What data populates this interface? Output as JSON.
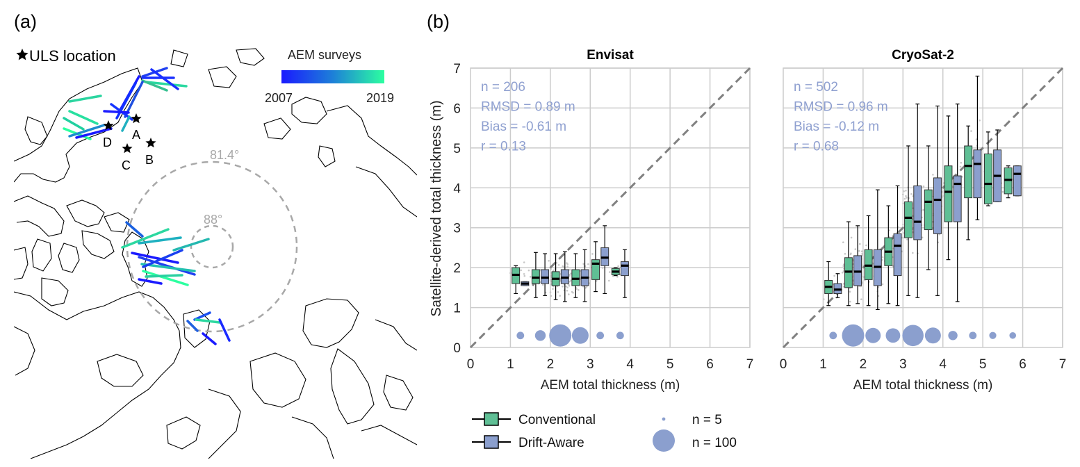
{
  "panel_a": {
    "label": "(a)",
    "uls_legend": "ULS location",
    "colorbar": {
      "title": "AEM surveys",
      "min_label": "2007",
      "max_label": "2019",
      "color_start": "#1a1aff",
      "color_end": "#2cffa0"
    },
    "latitude_labels": [
      "81.4°",
      "88°"
    ],
    "station_labels": [
      "A",
      "B",
      "C",
      "D"
    ]
  },
  "panel_b": {
    "label": "(b)",
    "legend": {
      "conventional": "Conventional",
      "drift_aware": "Drift-Aware",
      "n_small": "n = 5",
      "n_large": "n = 100"
    }
  },
  "colors": {
    "conventional": "#5fbf95",
    "drift_aware": "#8b9fce",
    "stats_text": "#8fa0d0",
    "scatter": "#c8c8c8",
    "grid": "#cccccc",
    "one_to_one": "#808080"
  },
  "chart_data": [
    {
      "type": "box",
      "title": "Envisat",
      "xlabel": "AEM total thickness (m)",
      "ylabel": "Satellite-derived total thickness (m)",
      "xlim": [
        0,
        7
      ],
      "ylim": [
        0,
        7
      ],
      "ticks": [
        0,
        1,
        2,
        3,
        4,
        5,
        6,
        7
      ],
      "stats": [
        "n = 206",
        "RMSD = 0.89 m",
        "Bias = -0.61 m",
        "r = 0.13"
      ],
      "bins": [
        1.25,
        1.75,
        2.25,
        2.75,
        3.25,
        3.75
      ],
      "conventional": [
        {
          "x": 1.25,
          "wlo": 1.35,
          "q1": 1.6,
          "med": 1.82,
          "q3": 2.0,
          "whi": 2.05
        },
        {
          "x": 1.75,
          "wlo": 1.25,
          "q1": 1.6,
          "med": 1.75,
          "q3": 1.95,
          "whi": 2.38
        },
        {
          "x": 2.25,
          "wlo": 1.2,
          "q1": 1.55,
          "med": 1.72,
          "q3": 1.9,
          "whi": 2.35
        },
        {
          "x": 2.75,
          "wlo": 1.25,
          "q1": 1.55,
          "med": 1.72,
          "q3": 1.95,
          "whi": 2.35
        },
        {
          "x": 3.25,
          "wlo": 1.4,
          "q1": 1.7,
          "med": 2.1,
          "q3": 2.2,
          "whi": 2.65
        },
        {
          "x": 3.75,
          "wlo": 1.8,
          "q1": 1.82,
          "med": 1.9,
          "q3": 1.98,
          "whi": 2.0
        }
      ],
      "drift_aware": [
        {
          "x": 1.25,
          "wlo": 1.55,
          "q1": 1.55,
          "med": 1.6,
          "q3": 1.65,
          "whi": 1.65
        },
        {
          "x": 1.75,
          "wlo": 1.3,
          "q1": 1.6,
          "med": 1.75,
          "q3": 1.95,
          "whi": 2.35
        },
        {
          "x": 2.25,
          "wlo": 1.15,
          "q1": 1.6,
          "med": 1.75,
          "q3": 1.95,
          "whi": 2.4
        },
        {
          "x": 2.75,
          "wlo": 1.15,
          "q1": 1.55,
          "med": 1.75,
          "q3": 1.95,
          "whi": 2.45
        },
        {
          "x": 3.25,
          "wlo": 1.35,
          "q1": 2.05,
          "med": 2.25,
          "q3": 2.5,
          "whi": 3.05
        },
        {
          "x": 3.75,
          "wlo": 1.25,
          "q1": 1.8,
          "med": 2.05,
          "q3": 2.15,
          "whi": 2.45
        }
      ],
      "counts": [
        5,
        15,
        100,
        50,
        5,
        5
      ]
    },
    {
      "type": "box",
      "title": "CryoSat-2",
      "xlabel": "AEM total thickness (m)",
      "ylabel": "",
      "xlim": [
        0,
        7
      ],
      "ylim": [
        0,
        7
      ],
      "ticks": [
        0,
        1,
        2,
        3,
        4,
        5,
        6,
        7
      ],
      "stats": [
        "n = 502",
        "RMSD = 0.96 m",
        "Bias = -0.12 m",
        "r = 0.68"
      ],
      "bins": [
        1.25,
        1.75,
        2.25,
        2.75,
        3.25,
        3.75,
        4.25,
        4.75,
        5.25,
        5.75
      ],
      "conventional": [
        {
          "x": 1.25,
          "wlo": 1.05,
          "q1": 1.35,
          "med": 1.52,
          "q3": 1.68,
          "whi": 2.15
        },
        {
          "x": 1.75,
          "wlo": 1.05,
          "q1": 1.5,
          "med": 1.9,
          "q3": 2.25,
          "whi": 3.15
        },
        {
          "x": 2.25,
          "wlo": 1.05,
          "q1": 1.7,
          "med": 2.05,
          "q3": 2.45,
          "whi": 3.3
        },
        {
          "x": 2.75,
          "wlo": 1.1,
          "q1": 2.05,
          "med": 2.4,
          "q3": 2.75,
          "whi": 3.55
        },
        {
          "x": 3.25,
          "wlo": 1.3,
          "q1": 2.75,
          "med": 3.25,
          "q3": 3.65,
          "whi": 5.05
        },
        {
          "x": 3.75,
          "wlo": 1.95,
          "q1": 2.95,
          "med": 3.65,
          "q3": 3.95,
          "whi": 5.05
        },
        {
          "x": 4.25,
          "wlo": 2.2,
          "q1": 3.15,
          "med": 3.9,
          "q3": 4.55,
          "whi": 5.8
        },
        {
          "x": 4.75,
          "wlo": 2.7,
          "q1": 3.75,
          "med": 4.55,
          "q3": 5.05,
          "whi": 5.55
        },
        {
          "x": 5.25,
          "wlo": 3.55,
          "q1": 3.6,
          "med": 4.1,
          "q3": 4.85,
          "whi": 5.4
        },
        {
          "x": 5.75,
          "wlo": 3.75,
          "q1": 3.85,
          "med": 4.2,
          "q3": 4.5,
          "whi": 4.55
        }
      ],
      "drift_aware": [
        {
          "x": 1.25,
          "wlo": 1.25,
          "q1": 1.35,
          "med": 1.45,
          "q3": 1.6,
          "whi": 1.85
        },
        {
          "x": 1.75,
          "wlo": 1.1,
          "q1": 1.55,
          "med": 1.9,
          "q3": 2.3,
          "whi": 3.05
        },
        {
          "x": 2.25,
          "wlo": 0.95,
          "q1": 1.55,
          "med": 2.02,
          "q3": 2.45,
          "whi": 3.95
        },
        {
          "x": 2.75,
          "wlo": 1.05,
          "q1": 1.8,
          "med": 2.55,
          "q3": 2.85,
          "whi": 4.05
        },
        {
          "x": 3.25,
          "wlo": 1.25,
          "q1": 2.7,
          "med": 3.15,
          "q3": 4.05,
          "whi": 6.1
        },
        {
          "x": 3.75,
          "wlo": 1.3,
          "q1": 2.85,
          "med": 3.7,
          "q3": 4.25,
          "whi": 6.05
        },
        {
          "x": 4.25,
          "wlo": 1.15,
          "q1": 3.15,
          "med": 4.1,
          "q3": 4.3,
          "whi": 6.1
        },
        {
          "x": 4.75,
          "wlo": 3.2,
          "q1": 3.75,
          "med": 4.6,
          "q3": 4.95,
          "whi": 6.8
        },
        {
          "x": 5.25,
          "wlo": 3.65,
          "q1": 3.65,
          "med": 4.3,
          "q3": 4.95,
          "whi": 5.45
        },
        {
          "x": 5.75,
          "wlo": 3.8,
          "q1": 3.8,
          "med": 4.35,
          "q3": 4.55,
          "whi": 4.55
        }
      ],
      "counts": [
        5,
        100,
        40,
        35,
        90,
        45,
        10,
        5,
        4,
        3
      ]
    }
  ]
}
